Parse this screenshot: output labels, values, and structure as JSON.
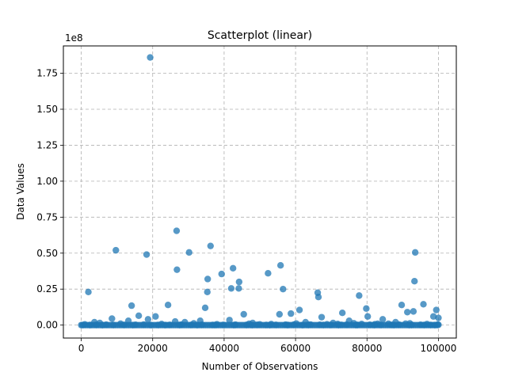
{
  "chart_data": {
    "type": "scatter",
    "title": "Scatterplot (linear)",
    "xlabel": "Number of Observations",
    "ylabel": "Data Values",
    "offset_label": "1e8",
    "xlim": [
      -5000,
      105000
    ],
    "ylim": [
      -9000000,
      194000000
    ],
    "x_ticks": [
      0,
      20000,
      40000,
      60000,
      80000,
      100000
    ],
    "x_tick_labels": [
      "0",
      "20000",
      "40000",
      "60000",
      "80000",
      "100000"
    ],
    "y_ticks": [
      0,
      25000000,
      50000000,
      75000000,
      100000000,
      125000000,
      150000000,
      175000000
    ],
    "y_tick_labels": [
      "0.00",
      "0.25",
      "0.50",
      "0.75",
      "1.00",
      "1.25",
      "1.50",
      "1.75"
    ],
    "grid": true,
    "marker_color": "#1f77b4",
    "series": [
      {
        "x": [
          19300,
          26700,
          36200,
          9700,
          18300,
          30200,
          93500,
          55800,
          42500,
          26800,
          52300,
          39300,
          35400,
          44200,
          93300,
          56500,
          42000,
          44100,
          2000,
          35300,
          66200,
          77800,
          66400,
          14100,
          95800,
          24300,
          34700,
          89700,
          79800,
          61100,
          93000,
          99400,
          91300,
          58700,
          45500,
          55500,
          73100,
          80200,
          16100,
          98600,
          20800,
          8600,
          100000,
          67300,
          18700,
          84400,
          26300,
          33300,
          13200,
          75000,
          41500,
          48000,
          88000,
          62800,
          70500,
          3700,
          29000,
          1000,
          5200,
          11000,
          22500,
          31500,
          38000,
          47000,
          53200,
          60200,
          64200,
          71800,
          76300,
          82200,
          86000,
          90800,
          96800,
          50000,
          57200,
          78500,
          92000,
          99800,
          68800,
          83000,
          4200,
          7000,
          12000,
          15200,
          17500,
          21500,
          24800,
          28000,
          30800,
          33800,
          36800,
          39800,
          43200,
          46300,
          49300,
          51800,
          54500,
          59500,
          63500,
          66800,
          69800,
          72800,
          74300,
          77300,
          80800,
          83800,
          86800,
          89000,
          92500,
          95000,
          97800,
          100000,
          300,
          2500,
          6000,
          9000,
          14500,
          19500,
          23500,
          27500,
          32500,
          37500,
          42800,
          47800,
          52800,
          57800,
          62000,
          67800,
          72000,
          77000,
          82000,
          87500,
          91800,
          96000,
          99000
        ],
        "y": [
          186000000,
          65500000,
          55000000,
          52000000,
          49000000,
          50500000,
          50500000,
          41500000,
          39500000,
          38500000,
          36000000,
          35500000,
          32000000,
          30000000,
          30500000,
          25000000,
          25500000,
          25500000,
          23000000,
          23000000,
          22500000,
          20500000,
          19500000,
          13500000,
          14500000,
          14000000,
          12000000,
          14000000,
          11500000,
          10500000,
          9500000,
          10500000,
          9000000,
          8000000,
          7500000,
          7500000,
          8500000,
          6000000,
          6500000,
          6000000,
          6000000,
          4500000,
          5000000,
          5500000,
          4000000,
          4000000,
          2500000,
          3000000,
          3000000,
          3000000,
          3500000,
          1500000,
          2000000,
          2000000,
          1500000,
          2000000,
          2000000,
          500000,
          1500000,
          1000000,
          800000,
          1200000,
          600000,
          900000,
          700000,
          1100000,
          400000,
          800000,
          1300000,
          600000,
          900000,
          1000000,
          700000,
          500000,
          300000,
          800000,
          1200000,
          400000,
          600000,
          900000,
          200000,
          300000,
          150000,
          250000,
          350000,
          100000,
          200000,
          300000,
          150000,
          250000,
          100000,
          200000,
          300000,
          150000,
          250000,
          100000,
          200000,
          300000,
          150000,
          250000,
          100000,
          200000,
          300000,
          150000,
          250000,
          100000,
          200000,
          300000,
          150000,
          250000,
          100000,
          200000,
          50000,
          80000,
          60000,
          90000,
          40000,
          70000,
          50000,
          80000,
          60000,
          90000,
          40000,
          70000,
          50000,
          80000,
          60000,
          90000,
          40000,
          70000,
          50000,
          80000,
          60000,
          90000,
          40000
        ]
      }
    ]
  }
}
